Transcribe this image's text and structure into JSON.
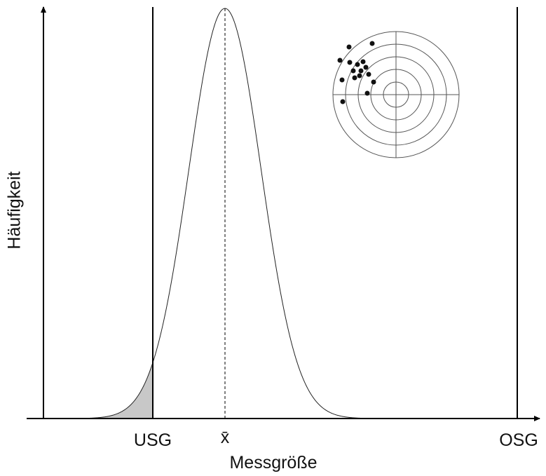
{
  "axes": {
    "y_label": "Häufigkeit",
    "x_label": "Messgröße"
  },
  "markers": {
    "lower_limit": "USG",
    "mean": "x̄",
    "upper_limit": "OSG"
  }
}
